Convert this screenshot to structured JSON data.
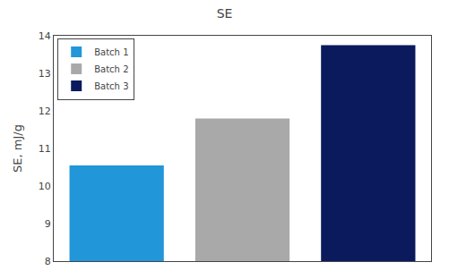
{
  "chart_data": {
    "type": "bar",
    "title": "SE",
    "ylabel": "SE, mJ/g",
    "categories": [
      "Batch 1",
      "Batch 2",
      "Batch 3"
    ],
    "values": [
      10.55,
      11.8,
      13.75
    ],
    "colors": [
      "#2196D9",
      "#A9A9A9",
      "#0A1A5C"
    ],
    "ylim": [
      8,
      14
    ],
    "yticks": [
      8,
      9,
      10,
      11,
      12,
      13,
      14
    ],
    "grid": false,
    "legend": "upper left",
    "tick_labels": "y"
  }
}
